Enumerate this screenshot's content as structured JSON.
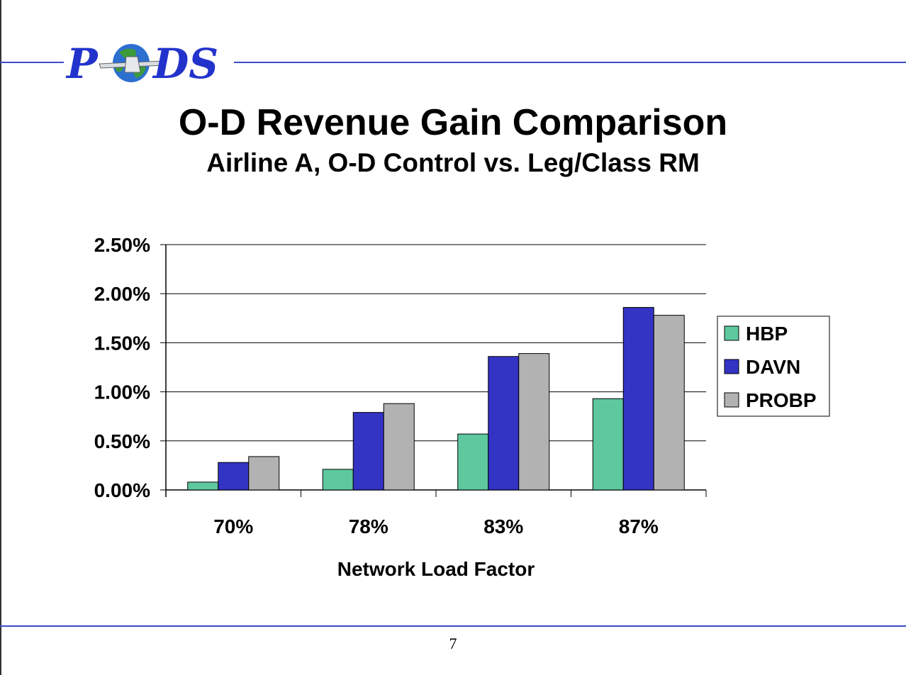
{
  "slide": {
    "title": "O-D Revenue Gain Comparison",
    "subtitle": "Airline A, O-D Control vs. Leg/Class RM",
    "page_number": "7",
    "logo_text": "PODS"
  },
  "colors": {
    "rule": "#3a4bc8",
    "logo_text": "#2233cc"
  },
  "chart_data": {
    "type": "bar",
    "categories": [
      "70%",
      "78%",
      "83%",
      "87%"
    ],
    "series": [
      {
        "name": "HBP",
        "values": [
          0.08,
          0.21,
          0.57,
          0.93
        ],
        "color": "#5ec89e"
      },
      {
        "name": "DAVN",
        "values": [
          0.28,
          0.79,
          1.36,
          1.86
        ],
        "color": "#3333c4"
      },
      {
        "name": "PROBP",
        "values": [
          0.34,
          0.88,
          1.39,
          1.78
        ],
        "color": "#b2b2b2"
      }
    ],
    "title": "",
    "xlabel": "Network Load Factor",
    "ylabel": "",
    "ylim": [
      0,
      2.5
    ],
    "yticks": [
      0,
      0.5,
      1.0,
      1.5,
      2.0,
      2.5
    ],
    "ytick_labels": [
      "0.00%",
      "0.50%",
      "1.00%",
      "1.50%",
      "2.00%",
      "2.50%"
    ],
    "grid": true,
    "legend": "right"
  }
}
